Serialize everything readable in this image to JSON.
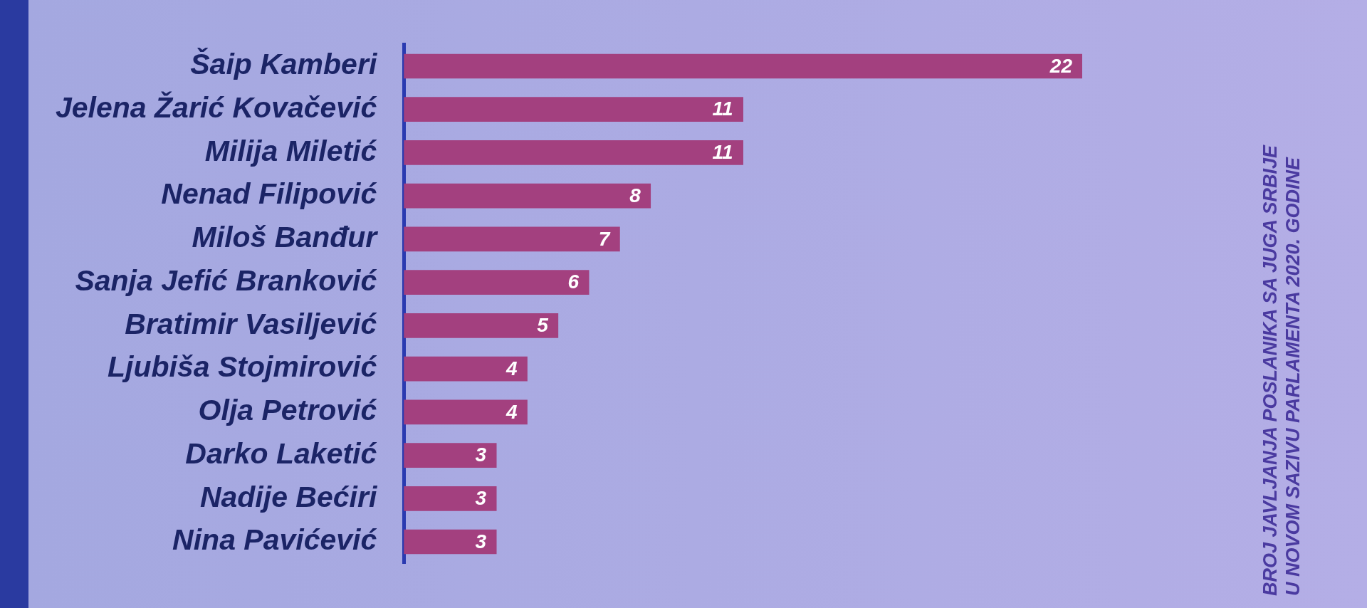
{
  "chart_data": {
    "type": "bar",
    "orientation": "horizontal",
    "title": [
      "BROJ JAVLJANJA POSLANIKA SA JUGA SRBIJE",
      "U NOVOM SAZIVU PARLAMENTA 2020. GODINE"
    ],
    "categories": [
      "Šaip Kamberi",
      "Jelena Žarić Kovačević",
      "Milija Miletić",
      "Nenad Filipović",
      "Miloš Banđur",
      "Sanja Jefić Branković",
      "Bratimir Vasiljević",
      "Ljubiša Stojmirović",
      "Olja Petrović",
      "Darko Laketić",
      "Nadije Bećiri",
      "Nina Pavićević"
    ],
    "values": [
      22,
      11,
      11,
      8,
      7,
      6,
      5,
      4,
      4,
      3,
      3,
      3
    ],
    "color": "#a3407f",
    "data_labels": true,
    "grid": false,
    "legend": false,
    "tick_labels": "y"
  }
}
